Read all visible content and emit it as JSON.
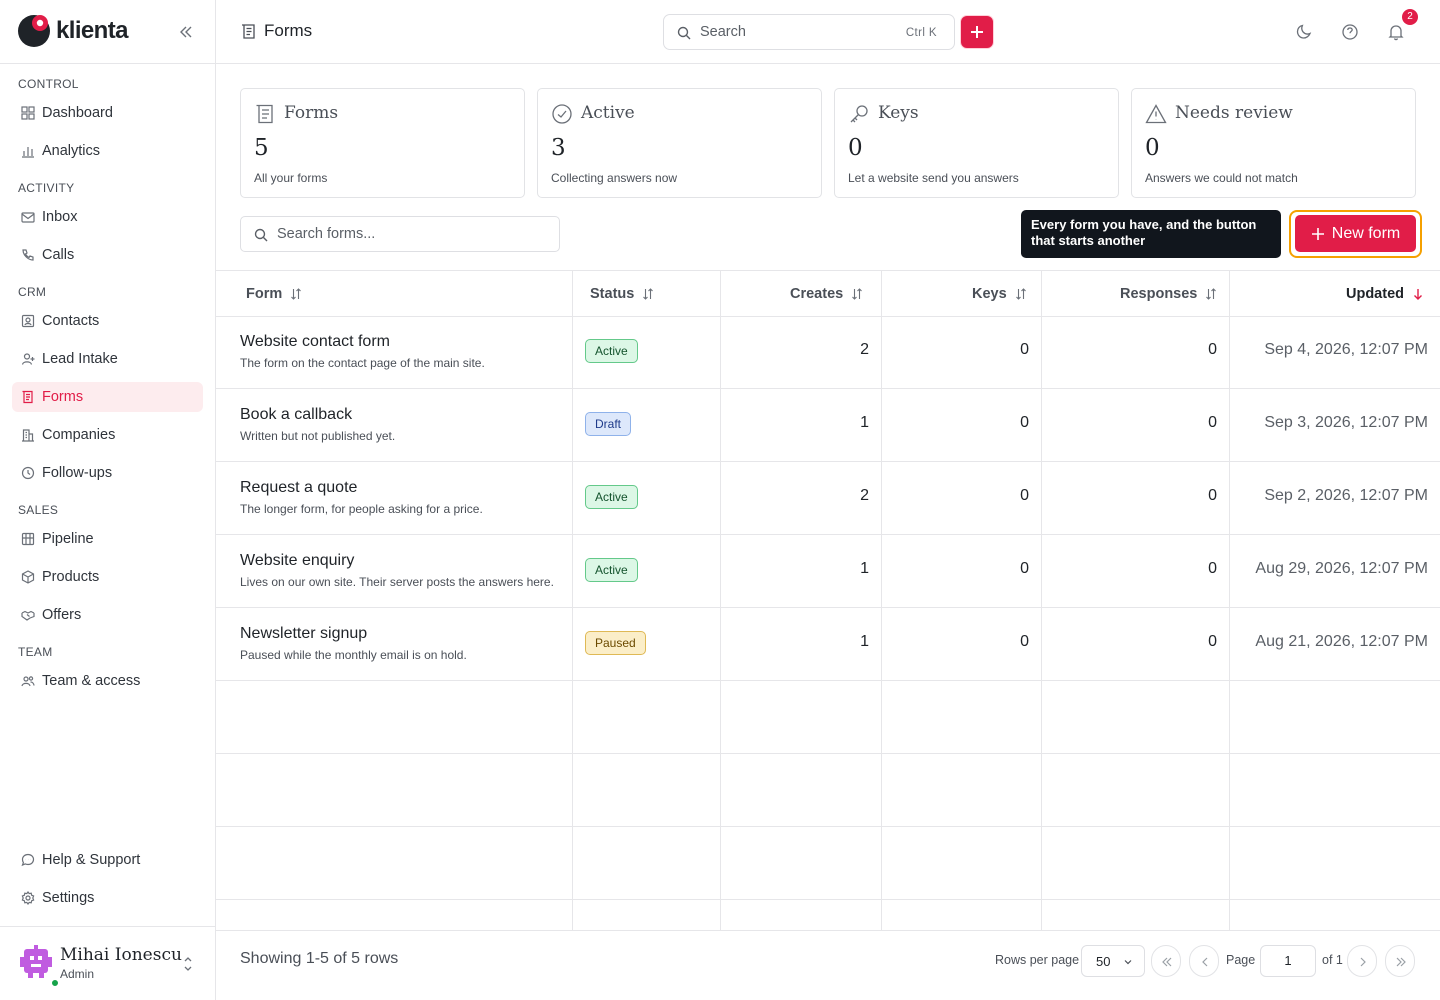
{
  "brand": {
    "name": "klienta",
    "accent": "#e11d48"
  },
  "sidebar": {
    "sections": [
      {
        "label": "CONTROL"
      },
      {
        "label": "ACTIVITY"
      },
      {
        "label": "CRM"
      },
      {
        "label": "SALES"
      },
      {
        "label": "TEAM"
      }
    ],
    "items": [
      {
        "label": "Dashboard",
        "icon": "grid-icon"
      },
      {
        "label": "Analytics",
        "icon": "bar-chart-icon"
      },
      {
        "label": "Inbox",
        "icon": "mail-icon"
      },
      {
        "label": "Calls",
        "icon": "phone-icon"
      },
      {
        "label": "Contacts",
        "icon": "contact-card-icon"
      },
      {
        "label": "Lead Intake",
        "icon": "user-plus-icon"
      },
      {
        "label": "Forms",
        "icon": "form-icon",
        "active": true
      },
      {
        "label": "Companies",
        "icon": "building-icon"
      },
      {
        "label": "Follow-ups",
        "icon": "clock-icon"
      },
      {
        "label": "Pipeline",
        "icon": "kanban-icon"
      },
      {
        "label": "Products",
        "icon": "package-icon"
      },
      {
        "label": "Offers",
        "icon": "handshake-icon"
      },
      {
        "label": "Team & access",
        "icon": "users-icon"
      }
    ],
    "bottom_items": [
      {
        "label": "Help & Support",
        "icon": "chat-icon"
      },
      {
        "label": "Settings",
        "icon": "gear-icon"
      }
    ],
    "user": {
      "name": "Mihai Ionescu",
      "role": "Admin",
      "status": "online"
    }
  },
  "topbar": {
    "title": "Forms",
    "search_placeholder": "Search",
    "search_shortcut": "Ctrl K",
    "notification_count": "2"
  },
  "stats": [
    {
      "label": "Forms",
      "value": "5",
      "description": "All your forms",
      "icon": "form-icon"
    },
    {
      "label": "Active",
      "value": "3",
      "description": "Collecting answers now",
      "icon": "check-circle-icon"
    },
    {
      "label": "Keys",
      "value": "0",
      "description": "Let a website send you answers",
      "icon": "key-icon"
    },
    {
      "label": "Needs review",
      "value": "0",
      "description": "Answers we could not match",
      "icon": "warning-icon"
    }
  ],
  "filter": {
    "search_placeholder": "Search forms..."
  },
  "tooltip": {
    "text": "Every form you have, and the button that starts another"
  },
  "new_form_button": {
    "label": "New form"
  },
  "table": {
    "columns": [
      "Form",
      "Status",
      "Creates",
      "Keys",
      "Responses",
      "Updated"
    ],
    "sorted_column": "Updated",
    "sort_direction": "desc",
    "rows": [
      {
        "title": "Website contact form",
        "description": "The form on the contact page of the main site.",
        "status": "Active",
        "creates": "2",
        "keys": "0",
        "responses": "0",
        "updated": "Sep 4, 2026, 12:07 PM"
      },
      {
        "title": "Book a callback",
        "description": "Written but not published yet.",
        "status": "Draft",
        "creates": "1",
        "keys": "0",
        "responses": "0",
        "updated": "Sep 3, 2026, 12:07 PM"
      },
      {
        "title": "Request a quote",
        "description": "The longer form, for people asking for a price.",
        "status": "Active",
        "creates": "2",
        "keys": "0",
        "responses": "0",
        "updated": "Sep 2, 2026, 12:07 PM"
      },
      {
        "title": "Website enquiry",
        "description": "Lives on our own site. Their server posts the answers here.",
        "status": "Active",
        "creates": "1",
        "keys": "0",
        "responses": "0",
        "updated": "Aug 29, 2026, 12:07 PM"
      },
      {
        "title": "Newsletter signup",
        "description": "Paused while the monthly email is on hold.",
        "status": "Paused",
        "creates": "1",
        "keys": "0",
        "responses": "0",
        "updated": "Aug 21, 2026, 12:07 PM"
      }
    ]
  },
  "footer": {
    "showing": "Showing 1-5 of 5 rows",
    "rows_per_page_label": "Rows per page",
    "rows_per_page": "50",
    "page_label": "Page",
    "page": "1",
    "of_pages": "of 1"
  }
}
